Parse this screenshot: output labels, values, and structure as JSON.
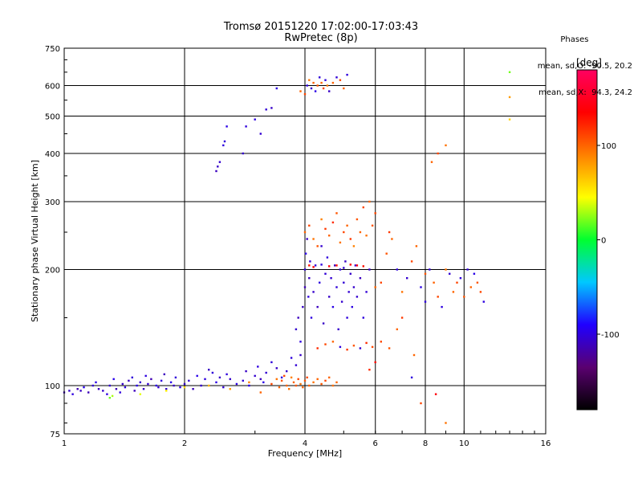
{
  "chart_data": {
    "type": "scatter",
    "title": "Tromsø 20151220 17:02:00-17:03:43",
    "subtitle": "RwPretec (8p)",
    "xlabel": "Frequency [MHz]",
    "ylabel": "Stationary phase Virtual Height [km]",
    "x_scale": "log",
    "y_scale": "log",
    "xlim": [
      1,
      16
    ],
    "ylim": [
      75,
      750
    ],
    "x_ticks": [
      1,
      2,
      4,
      6,
      8,
      10,
      16
    ],
    "x_tick_labels": [
      "1",
      "2",
      "4",
      "6",
      "8",
      "10",
      "16"
    ],
    "y_ticks": [
      75,
      100,
      200,
      300,
      400,
      500,
      600,
      750
    ],
    "y_tick_labels": [
      "75",
      "100",
      "200",
      "300",
      "400",
      "500",
      "600",
      "750"
    ],
    "grid": true,
    "colorbar": {
      "label": "[deg]",
      "range": [
        -180,
        180
      ],
      "ticks": [
        100,
        0,
        -100
      ],
      "tick_labels": [
        "100",
        "0",
        "-100"
      ],
      "colors": [
        "#000000",
        "#5a0070",
        "#2000ff",
        "#00c8ff",
        "#00ff30",
        "#ffff00",
        "#ff8000",
        "#ff0000",
        "#ff0060"
      ]
    },
    "phase_stats": {
      "heading": "Phases",
      "line_o": "mean, sd,O: -90.5, 20.2",
      "line_x": "mean, sd,X:  94.3, 24.2"
    },
    "series": [
      {
        "x": [
          1.0,
          1.03,
          1.05,
          1.08,
          1.1,
          1.12,
          1.15,
          1.18,
          1.2,
          1.22,
          1.25,
          1.28,
          1.3,
          1.33,
          1.35,
          1.38,
          1.4,
          1.42,
          1.45,
          1.48,
          1.5,
          1.52,
          1.55,
          1.58,
          1.6,
          1.62,
          1.65,
          1.7,
          1.72,
          1.75,
          1.78,
          1.8,
          1.85,
          1.88,
          1.9,
          1.95,
          2.0,
          2.05,
          2.1,
          2.15,
          2.2,
          2.25,
          2.3,
          2.35,
          2.4,
          2.45,
          2.5,
          2.55,
          2.6,
          2.7,
          2.8,
          2.85,
          2.9,
          3.0,
          3.05,
          3.1,
          3.15,
          3.2,
          3.3,
          3.4,
          3.5,
          3.6,
          3.7,
          3.8,
          3.9
        ],
        "y": [
          96,
          97,
          95,
          98,
          97,
          99,
          96,
          100,
          102,
          98,
          97,
          95,
          100,
          104,
          98,
          96,
          101,
          99,
          103,
          105,
          97,
          100,
          102,
          98,
          106,
          101,
          104,
          100,
          99,
          103,
          107,
          98,
          102,
          100,
          105,
          99,
          101,
          103,
          98,
          106,
          100,
          104,
          110,
          108,
          102,
          105,
          99,
          107,
          104,
          101,
          103,
          109,
          100,
          106,
          112,
          104,
          102,
          108,
          115,
          111,
          105,
          109,
          118,
          113,
          120
        ],
        "phase": [
          -110,
          -105,
          -100,
          -115,
          -108,
          -95,
          -112,
          -103,
          -98,
          -110,
          -106,
          -100,
          -104,
          -96,
          -113,
          -101,
          -107,
          -99,
          -109,
          -102,
          -111,
          -97,
          -105,
          -108,
          -100,
          -103,
          -114,
          -98,
          -106,
          -101,
          -110,
          -104,
          -96,
          -107,
          -102,
          -99,
          -108,
          -103,
          -111,
          -97,
          -105,
          -100,
          -109,
          -102,
          -98,
          -107,
          -104,
          -101,
          -106,
          -99,
          -103,
          -108,
          -96,
          -105,
          -100,
          -110,
          -97,
          -104,
          -102,
          -108,
          -99,
          -106,
          -101,
          -103,
          -107
        ]
      },
      {
        "x": [
          1.3,
          1.32,
          1.55,
          1.8,
          2.0,
          2.3,
          2.6,
          2.9,
          3.1,
          3.3,
          3.4,
          3.45,
          3.5,
          3.55,
          3.6,
          3.65,
          3.7,
          3.75,
          3.8,
          3.85,
          3.9,
          3.95,
          4.0,
          4.05,
          4.1,
          4.2,
          4.3,
          4.4,
          4.5,
          4.6,
          4.7,
          4.8
        ],
        "y": [
          93,
          94,
          95,
          97,
          99,
          100,
          98,
          102,
          96,
          101,
          104,
          99,
          103,
          106,
          100,
          98,
          105,
          102,
          100,
          104,
          101,
          99,
          103,
          105,
          100,
          102,
          104,
          101,
          103,
          105,
          100,
          102
        ],
        "phase": [
          20,
          30,
          40,
          50,
          60,
          70,
          80,
          90,
          100,
          110,
          95,
          100,
          105,
          110,
          100,
          95,
          90,
          100,
          105,
          110,
          95,
          100,
          105,
          110,
          100,
          95,
          100,
          105,
          110,
          100,
          95,
          100
        ]
      },
      {
        "x": [
          2.4,
          2.42,
          2.45,
          2.5,
          2.52,
          2.55,
          2.8,
          2.85,
          3.0,
          3.1,
          3.2,
          3.3,
          3.4
        ],
        "y": [
          360,
          370,
          380,
          420,
          430,
          470,
          400,
          470,
          490,
          450,
          520,
          525,
          590
        ],
        "phase": [
          -110,
          -108,
          -105,
          -100,
          -102,
          -98,
          -106,
          -101,
          -100,
          -104,
          -103,
          -107,
          -99
        ]
      },
      {
        "x": [
          3.9,
          4.0,
          4.05,
          4.1,
          4.15,
          4.2,
          4.25,
          4.3,
          4.35,
          4.4,
          4.45,
          4.5,
          4.55,
          4.6,
          4.7,
          4.8,
          4.9,
          5.0,
          5.1
        ],
        "y": [
          580,
          570,
          600,
          620,
          590,
          610,
          580,
          600,
          630,
          610,
          590,
          620,
          600,
          580,
          610,
          630,
          620,
          590,
          640
        ],
        "phase": [
          100,
          110,
          -100,
          95,
          -105,
          100,
          -98,
          105,
          -102,
          100,
          110,
          -100,
          95,
          -108,
          100,
          -103,
          110,
          100,
          -101
        ]
      },
      {
        "x": [
          3.8,
          3.85,
          3.9,
          3.95,
          4.0,
          4.0,
          4.02,
          4.05,
          4.08,
          4.1,
          4.12,
          4.15,
          4.2,
          4.25,
          4.3,
          4.35,
          4.4,
          4.45,
          4.5,
          4.55,
          4.6,
          4.65,
          4.7,
          4.75,
          4.8,
          4.85,
          4.9,
          4.95,
          5.0,
          5.05,
          5.1,
          5.15,
          5.2,
          5.25,
          5.3,
          5.35,
          5.4,
          5.5,
          5.6,
          5.7,
          5.8
        ],
        "y": [
          140,
          150,
          130,
          160,
          180,
          200,
          220,
          240,
          170,
          190,
          210,
          150,
          175,
          205,
          160,
          185,
          230,
          145,
          195,
          215,
          170,
          190,
          160,
          205,
          180,
          140,
          200,
          165,
          185,
          210,
          150,
          175,
          195,
          160,
          180,
          205,
          170,
          190,
          150,
          175,
          200
        ],
        "phase": [
          -105,
          -110,
          -100,
          -108,
          -112,
          -103,
          -98,
          -107,
          -101,
          -109,
          -104,
          -99,
          -106,
          -102,
          -110,
          -100,
          -105,
          -108,
          -103,
          -101,
          -107,
          -104,
          -98,
          -109,
          -102,
          -106,
          -100,
          -105,
          -103,
          -108,
          -101,
          -104,
          -107,
          -99,
          -106,
          -102,
          -105,
          -110,
          -100,
          -103,
          -108
        ]
      },
      {
        "x": [
          4.0,
          4.1,
          4.2,
          4.3,
          4.4,
          4.5,
          4.6,
          4.7,
          4.8,
          4.9,
          5.0,
          5.1,
          5.2,
          5.3,
          5.4,
          5.5,
          5.6,
          5.7,
          5.8,
          5.9,
          6.0
        ],
        "y": [
          250,
          260,
          240,
          230,
          270,
          255,
          245,
          265,
          280,
          235,
          250,
          260,
          240,
          230,
          270,
          250,
          290,
          245,
          300,
          260,
          280
        ],
        "phase": [
          100,
          110,
          95,
          105,
          90,
          115,
          100,
          120,
          105,
          95,
          110,
          100,
          115,
          90,
          105,
          100,
          110,
          95,
          100,
          105,
          110
        ]
      },
      {
        "x": [
          4.3,
          4.5,
          4.7,
          4.9,
          5.1,
          5.3,
          5.5,
          5.7,
          5.9
        ],
        "y": [
          125,
          128,
          130,
          126,
          124,
          127,
          125,
          129,
          126
        ],
        "phase": [
          120,
          110,
          100,
          -100,
          115,
          105,
          -105,
          120,
          110
        ]
      },
      {
        "x": [
          4.1,
          4.2,
          4.4,
          4.6,
          4.8,
          5.0,
          5.2,
          5.4,
          5.6
        ],
        "y": [
          205,
          203,
          206,
          204,
          205,
          202,
          206,
          205,
          204
        ],
        "phase": [
          130,
          135,
          -100,
          140,
          130,
          -105,
          135,
          140,
          130
        ]
      },
      {
        "x": [
          6.0,
          6.2,
          6.4,
          6.5,
          6.6,
          6.8,
          7.0,
          7.2,
          7.4,
          7.6,
          7.8,
          8.0,
          8.2,
          8.4,
          8.6,
          8.8,
          9.0,
          9.2,
          9.4,
          9.6,
          9.8,
          10.0,
          10.2,
          10.4,
          10.6,
          10.8,
          11.0,
          11.2
        ],
        "y": [
          180,
          185,
          220,
          250,
          240,
          200,
          175,
          190,
          210,
          230,
          180,
          195,
          200,
          185,
          170,
          160,
          200,
          195,
          175,
          185,
          190,
          170,
          200,
          180,
          195,
          185,
          175,
          165
        ],
        "phase": [
          100,
          110,
          105,
          115,
          100,
          -100,
          95,
          -105,
          110,
          100,
          -98,
          105,
          -102,
          100,
          110,
          -100,
          95,
          -105,
          100,
          110,
          -100,
          105,
          -102,
          100,
          -98,
          105,
          110,
          -100
        ]
      },
      {
        "x": [
          6.2,
          6.5,
          6.8,
          7.0,
          7.5,
          8.0,
          8.3,
          8.6,
          9.0
        ],
        "y": [
          130,
          125,
          140,
          150,
          120,
          165,
          380,
          400,
          420
        ],
        "phase": [
          110,
          105,
          100,
          115,
          100,
          -100,
          100,
          110,
          95
        ]
      },
      {
        "x": [
          5.8,
          6.0,
          7.4,
          7.8,
          8.5,
          9.0,
          13.0,
          13.0,
          13.0
        ],
        "y": [
          110,
          115,
          105,
          90,
          95,
          80,
          650,
          560,
          490
        ],
        "phase": [
          120,
          130,
          -100,
          110,
          140,
          95,
          20,
          80,
          60
        ]
      }
    ]
  }
}
